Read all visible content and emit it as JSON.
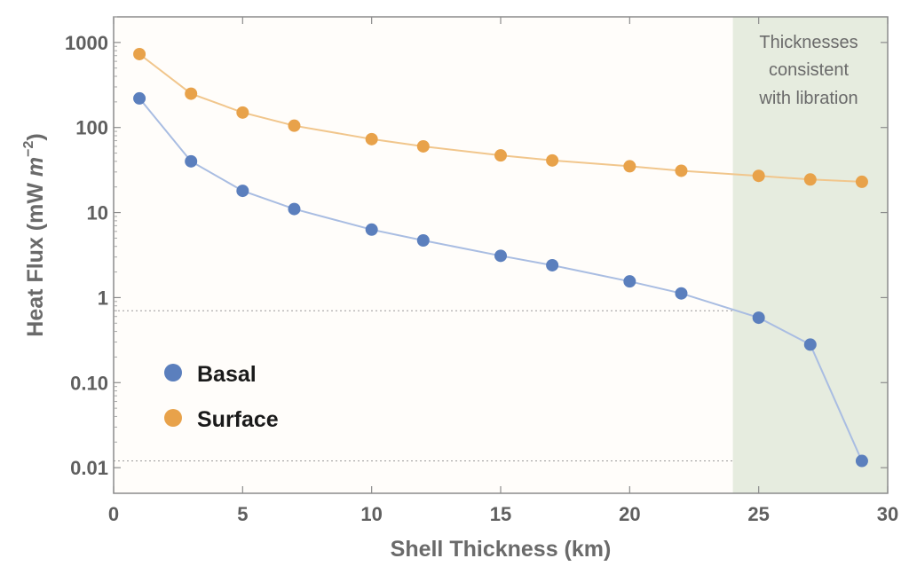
{
  "chart_data": {
    "type": "line",
    "title": "",
    "xlabel": "Shell Thickness (km)",
    "ylabel_main": "Heat Flux (mW ",
    "ylabel_unit": "m",
    "ylabel_exp": "−2",
    "ylabel_close": ")",
    "xlim": [
      0,
      30
    ],
    "ylim": [
      0.005,
      2000
    ],
    "yscale": "log",
    "xticks": [
      0,
      5,
      10,
      15,
      20,
      25,
      30
    ],
    "xtick_labels": [
      "0",
      "5",
      "10",
      "15",
      "20",
      "25",
      "30"
    ],
    "yticks": [
      0.01,
      0.1,
      1,
      10,
      100,
      1000
    ],
    "ytick_labels": [
      "0.01",
      "0.10",
      "1",
      "10",
      "100",
      "1000"
    ],
    "grid": false,
    "legend_placement": "lower-left",
    "series": [
      {
        "name": "Basal",
        "color": "#5b7fbd",
        "line_color": "#a9bde2",
        "x": [
          1,
          3,
          5,
          7,
          10,
          12,
          15,
          17,
          20,
          22,
          25,
          27,
          29
        ],
        "values": [
          220,
          40,
          18,
          11,
          6.3,
          4.7,
          3.1,
          2.4,
          1.55,
          1.12,
          0.58,
          0.28,
          0.012
        ]
      },
      {
        "name": "Surface",
        "color": "#e8a24a",
        "line_color": "#f1c68c",
        "x": [
          1,
          3,
          5,
          7,
          10,
          12,
          15,
          17,
          20,
          22,
          25,
          27,
          29
        ],
        "values": [
          730,
          250,
          150,
          105,
          73,
          60,
          47,
          41,
          35,
          31,
          27,
          24.5,
          23
        ]
      }
    ],
    "shaded_region": {
      "x_range": [
        24,
        30
      ],
      "color": "#e6ecdf",
      "label_lines": [
        "Thicknesses",
        "consistent",
        "with libration"
      ]
    },
    "reference_lines": [
      0.7,
      0.012
    ]
  }
}
